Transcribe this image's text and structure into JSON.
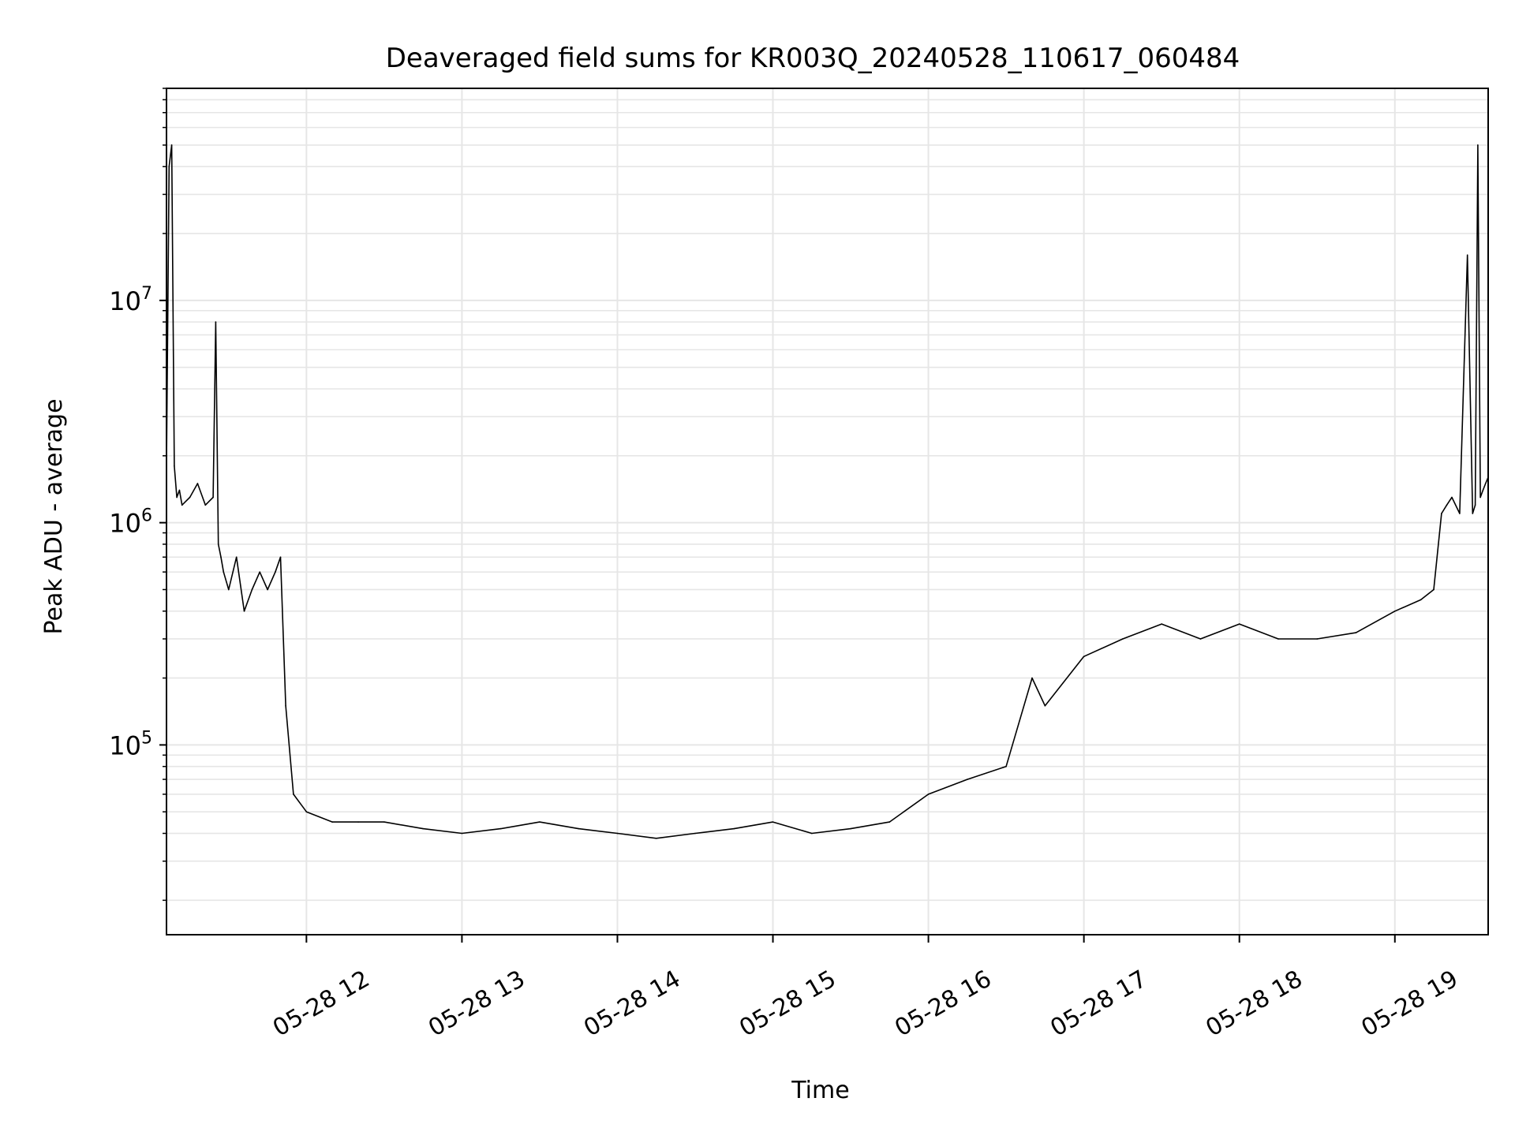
{
  "chart_data": {
    "type": "line",
    "title": "Deaveraged field sums for KR003Q_20240528_110617_060484",
    "xlabel": "Time",
    "ylabel": "Peak ADU - average",
    "y_scale": "log",
    "xlim": [
      "2024-05-28 11:06",
      "2024-05-28 19:36"
    ],
    "ylim": [
      14000,
      90000000
    ],
    "x_tick_values": [
      "2024-05-28 12:00",
      "2024-05-28 13:00",
      "2024-05-28 14:00",
      "2024-05-28 15:00",
      "2024-05-28 16:00",
      "2024-05-28 17:00",
      "2024-05-28 18:00",
      "2024-05-28 19:00"
    ],
    "x_tick_labels": [
      "05-28 12",
      "05-28 13",
      "05-28 14",
      "05-28 15",
      "05-28 16",
      "05-28 17",
      "05-28 18",
      "05-28 19"
    ],
    "y_ticks": [
      {
        "value": 100000,
        "base": "10",
        "exp": "5"
      },
      {
        "value": 1000000,
        "base": "10",
        "exp": "6"
      },
      {
        "value": 10000000,
        "base": "10",
        "exp": "7"
      }
    ],
    "grid": true,
    "line_color": "#000000",
    "series": [
      {
        "x": [
          "2024-05-28 11:06",
          "2024-05-28 11:07",
          "2024-05-28 11:08",
          "2024-05-28 11:09",
          "2024-05-28 11:10",
          "2024-05-28 11:11",
          "2024-05-28 11:12",
          "2024-05-28 11:15",
          "2024-05-28 11:18",
          "2024-05-28 11:21",
          "2024-05-28 11:24",
          "2024-05-28 11:25",
          "2024-05-28 11:26",
          "2024-05-28 11:27",
          "2024-05-28 11:28",
          "2024-05-28 11:30",
          "2024-05-28 11:33",
          "2024-05-28 11:36",
          "2024-05-28 11:39",
          "2024-05-28 11:42",
          "2024-05-28 11:45",
          "2024-05-28 11:48",
          "2024-05-28 11:50",
          "2024-05-28 11:52",
          "2024-05-28 11:55",
          "2024-05-28 12:00",
          "2024-05-28 12:10",
          "2024-05-28 12:20",
          "2024-05-28 12:30",
          "2024-05-28 12:45",
          "2024-05-28 13:00",
          "2024-05-28 13:15",
          "2024-05-28 13:30",
          "2024-05-28 13:45",
          "2024-05-28 14:00",
          "2024-05-28 14:15",
          "2024-05-28 14:30",
          "2024-05-28 14:45",
          "2024-05-28 15:00",
          "2024-05-28 15:15",
          "2024-05-28 15:30",
          "2024-05-28 15:45",
          "2024-05-28 16:00",
          "2024-05-28 16:15",
          "2024-05-28 16:30",
          "2024-05-28 16:40",
          "2024-05-28 16:45",
          "2024-05-28 17:00",
          "2024-05-28 17:15",
          "2024-05-28 17:30",
          "2024-05-28 17:45",
          "2024-05-28 18:00",
          "2024-05-28 18:15",
          "2024-05-28 18:30",
          "2024-05-28 18:45",
          "2024-05-28 19:00",
          "2024-05-28 19:10",
          "2024-05-28 19:15",
          "2024-05-28 19:18",
          "2024-05-28 19:20",
          "2024-05-28 19:22",
          "2024-05-28 19:25",
          "2024-05-28 19:28",
          "2024-05-28 19:30",
          "2024-05-28 19:31",
          "2024-05-28 19:32",
          "2024-05-28 19:33",
          "2024-05-28 19:34",
          "2024-05-28 19:35",
          "2024-05-28 19:36"
        ],
        "y": [
          1800000,
          40000000,
          50000000,
          1800000,
          1300000,
          1400000,
          1200000,
          1300000,
          1500000,
          1200000,
          1300000,
          8000000,
          800000,
          700000,
          600000,
          500000,
          700000,
          400000,
          500000,
          600000,
          500000,
          600000,
          700000,
          150000,
          60000,
          50000,
          45000,
          45000,
          45000,
          42000,
          40000,
          42000,
          45000,
          42000,
          40000,
          38000,
          40000,
          42000,
          45000,
          40000,
          42000,
          45000,
          60000,
          70000,
          80000,
          200000,
          150000,
          250000,
          300000,
          350000,
          300000,
          350000,
          300000,
          300000,
          320000,
          400000,
          450000,
          500000,
          1100000,
          1200000,
          1300000,
          1100000,
          16000000,
          1100000,
          1200000,
          50000000,
          1300000,
          1400000,
          1500000,
          1600000
        ]
      }
    ]
  }
}
